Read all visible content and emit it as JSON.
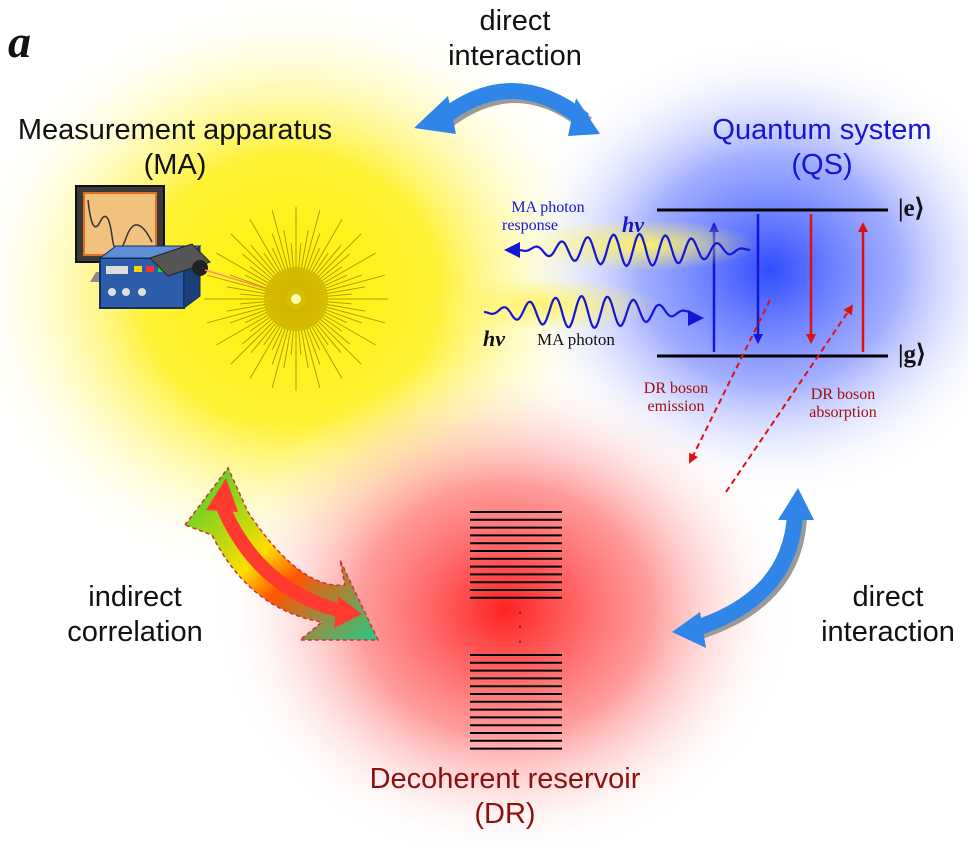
{
  "panel_label": "a",
  "top_arrow_label": [
    "direct",
    "interaction"
  ],
  "measurement_apparatus": {
    "title": "Measurement apparatus",
    "abbr": "(MA)",
    "color": "#111111"
  },
  "quantum_system": {
    "title": "Quantum system",
    "abbr": "(QS)",
    "color": "#1515d6"
  },
  "reservoir": {
    "title": "Decoherent reservoir",
    "abbr": "(DR)",
    "color": "#8b1010"
  },
  "indirect_label": [
    "indirect",
    "correlation"
  ],
  "right_arrow_label": [
    "direct",
    "interaction"
  ],
  "energy_levels": {
    "excited": "|e⟩",
    "ground": "|g⟩"
  },
  "photon_response": {
    "text": [
      "MA photon",
      "response"
    ],
    "symbol": "hν",
    "color": "#1515d6"
  },
  "photon_in": {
    "text": "MA photon",
    "symbol": "hν"
  },
  "dr_emission": [
    "DR boson",
    "emission"
  ],
  "dr_absorption": [
    "DR boson",
    "absorption"
  ],
  "reservoir_dots": "·\n·\n·",
  "colors": {
    "ma_glow": "#ffee00",
    "qs_glow": "#3b58ff",
    "dr_glow": "#ff3030",
    "arrow_blue": "#2f86e8",
    "dr_red": "#e01010"
  }
}
